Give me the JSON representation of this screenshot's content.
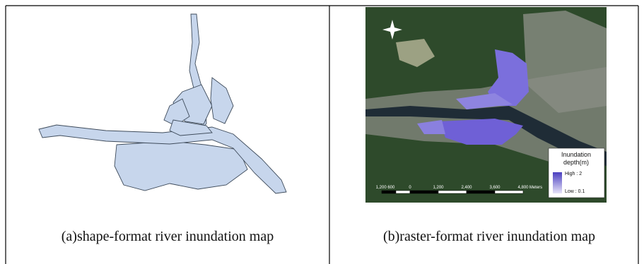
{
  "panels": [
    {
      "caption": "(a)shape-format river inundation map"
    },
    {
      "caption": "(b)raster-format river inundation map",
      "legend": {
        "title_lines": [
          "Inundation",
          "depth(m)"
        ],
        "high": "High : 2",
        "low": "Low : 0.1"
      },
      "scale_bar": {
        "labels": [
          "1,200 600",
          "0",
          "1,200",
          "2,400",
          "3,600",
          "4,800"
        ],
        "unit": "Meters"
      }
    }
  ]
}
